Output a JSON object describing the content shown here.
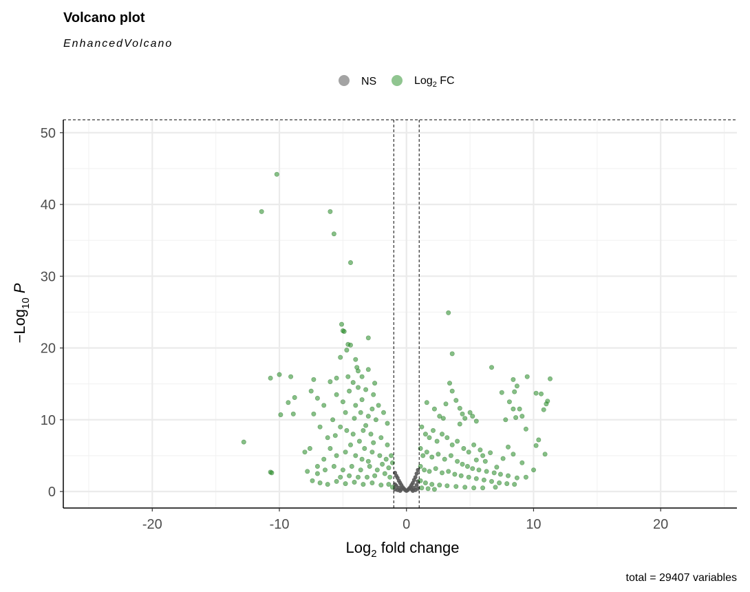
{
  "chart_data": {
    "type": "scatter",
    "title": "Volcano plot",
    "subtitle": "EnhancedVolcano",
    "xlabel": "Log2 fold change",
    "ylabel": "−Log10 P",
    "xlim": [
      -27,
      26
    ],
    "ylim": [
      -2.3,
      51.8
    ],
    "x_ticks": [
      -20,
      -10,
      0,
      10,
      20
    ],
    "y_ticks": [
      0,
      10,
      20,
      30,
      40,
      50
    ],
    "grid": true,
    "legend_position": "top",
    "legend": [
      {
        "label": "NS",
        "color": "#999999"
      },
      {
        "label": "Log2 FC",
        "color": "#228B22"
      }
    ],
    "cutoffs": {
      "fc": [
        -1,
        1
      ],
      "p_line_y": 51.8
    },
    "caption": "total = 29407 variables",
    "series": [
      {
        "name": "NS",
        "color": "#555555",
        "points": [
          [
            -0.9,
            2.6
          ],
          [
            -0.8,
            2.2
          ],
          [
            -0.7,
            1.9
          ],
          [
            -0.6,
            1.5
          ],
          [
            -0.5,
            1.2
          ],
          [
            -0.4,
            0.9
          ],
          [
            -0.3,
            0.6
          ],
          [
            -0.2,
            0.4
          ],
          [
            -0.1,
            0.2
          ],
          [
            0.0,
            0.1
          ],
          [
            0.1,
            0.2
          ],
          [
            0.2,
            0.4
          ],
          [
            0.3,
            0.6
          ],
          [
            0.4,
            0.9
          ],
          [
            0.5,
            1.2
          ],
          [
            0.6,
            1.6
          ],
          [
            0.7,
            2.0
          ],
          [
            0.8,
            2.5
          ],
          [
            0.9,
            3.0
          ],
          [
            -0.9,
            1.0
          ],
          [
            -0.8,
            0.8
          ],
          [
            -0.6,
            0.5
          ],
          [
            -0.4,
            0.3
          ],
          [
            0.4,
            0.3
          ],
          [
            0.6,
            0.5
          ],
          [
            0.8,
            0.9
          ],
          [
            0.9,
            1.4
          ],
          [
            -0.9,
            0.3
          ],
          [
            -0.7,
            0.2
          ],
          [
            -0.5,
            0.1
          ],
          [
            0.5,
            0.1
          ],
          [
            0.7,
            0.2
          ],
          [
            0.9,
            0.4
          ]
        ]
      },
      {
        "name": "Log2 FC",
        "color": "#228B22",
        "points": [
          [
            -10.2,
            44.2
          ],
          [
            -11.4,
            39.0
          ],
          [
            -6.0,
            39.0
          ],
          [
            -5.7,
            35.9
          ],
          [
            -4.4,
            31.9
          ],
          [
            3.3,
            24.9
          ],
          [
            3.6,
            19.2
          ],
          [
            -5.1,
            23.3
          ],
          [
            -5.0,
            22.4
          ],
          [
            -4.9,
            22.3
          ],
          [
            -3.0,
            21.4
          ],
          [
            -4.6,
            20.5
          ],
          [
            -4.4,
            20.4
          ],
          [
            -4.7,
            19.7
          ],
          [
            -5.2,
            18.7
          ],
          [
            -4.0,
            18.4
          ],
          [
            -3.9,
            17.3
          ],
          [
            -3.8,
            16.8
          ],
          [
            -3.0,
            17.0
          ],
          [
            -3.5,
            16.0
          ],
          [
            -4.6,
            16.0
          ],
          [
            -5.5,
            15.8
          ],
          [
            -2.5,
            15.1
          ],
          [
            -6.0,
            15.3
          ],
          [
            -4.2,
            15.2
          ],
          [
            -10.0,
            16.3
          ],
          [
            -10.7,
            15.8
          ],
          [
            -9.1,
            16.0
          ],
          [
            -7.3,
            15.6
          ],
          [
            -8.8,
            13.1
          ],
          [
            -9.3,
            12.4
          ],
          [
            -9.9,
            10.7
          ],
          [
            -8.9,
            10.8
          ],
          [
            -12.8,
            6.9
          ],
          [
            -10.7,
            2.7
          ],
          [
            -10.6,
            2.6
          ],
          [
            -7.5,
            14.0
          ],
          [
            -7.3,
            10.8
          ],
          [
            -7.0,
            13.0
          ],
          [
            -6.5,
            12.0
          ],
          [
            -5.8,
            10.0
          ],
          [
            -6.8,
            9.0
          ],
          [
            -7.6,
            6.0
          ],
          [
            -8.0,
            5.5
          ],
          [
            -6.2,
            7.5
          ],
          [
            -5.5,
            13.5
          ],
          [
            -5.0,
            12.5
          ],
          [
            -4.5,
            14.0
          ],
          [
            -3.8,
            14.5
          ],
          [
            -3.2,
            14.2
          ],
          [
            -2.6,
            13.5
          ],
          [
            -2.2,
            12.0
          ],
          [
            -1.8,
            11.0
          ],
          [
            -1.5,
            9.5
          ],
          [
            -4.0,
            12.0
          ],
          [
            -3.6,
            11.0
          ],
          [
            -3.0,
            10.5
          ],
          [
            -2.4,
            10.0
          ],
          [
            -5.2,
            9.0
          ],
          [
            -4.7,
            8.5
          ],
          [
            -4.2,
            8.0
          ],
          [
            -3.4,
            8.5
          ],
          [
            -2.8,
            8.0
          ],
          [
            -2.0,
            7.5
          ],
          [
            -1.5,
            6.5
          ],
          [
            -1.2,
            5.0
          ],
          [
            -1.1,
            4.0
          ],
          [
            -6.0,
            6.0
          ],
          [
            -5.5,
            5.0
          ],
          [
            -4.8,
            5.5
          ],
          [
            -4.0,
            5.0
          ],
          [
            -3.3,
            6.0
          ],
          [
            -2.7,
            5.5
          ],
          [
            -2.1,
            5.0
          ],
          [
            -1.6,
            4.5
          ],
          [
            -7.0,
            3.5
          ],
          [
            -6.4,
            3.0
          ],
          [
            -5.7,
            3.5
          ],
          [
            -5.0,
            3.0
          ],
          [
            -4.3,
            3.5
          ],
          [
            -3.6,
            3.0
          ],
          [
            -2.9,
            3.5
          ],
          [
            -2.3,
            3.0
          ],
          [
            -1.7,
            2.5
          ],
          [
            -1.3,
            2.0
          ],
          [
            -7.4,
            1.5
          ],
          [
            -6.8,
            1.2
          ],
          [
            -6.2,
            1.0
          ],
          [
            -5.5,
            1.4
          ],
          [
            -4.8,
            1.1
          ],
          [
            -4.1,
            1.3
          ],
          [
            -3.4,
            1.0
          ],
          [
            -2.7,
            1.2
          ],
          [
            -2.0,
            0.9
          ],
          [
            -1.4,
            1.0
          ],
          [
            -1.1,
            0.6
          ],
          [
            -3.1,
            2.0
          ],
          [
            -3.8,
            2.0
          ],
          [
            -4.5,
            2.2
          ],
          [
            -5.2,
            2.0
          ],
          [
            -2.5,
            2.2
          ],
          [
            -3.0,
            4.2
          ],
          [
            -3.5,
            4.5
          ],
          [
            -2.6,
            6.8
          ],
          [
            -3.7,
            7.0
          ],
          [
            -4.4,
            6.5
          ],
          [
            -1.9,
            3.8
          ],
          [
            -1.4,
            3.3
          ],
          [
            -3.2,
            9.2
          ],
          [
            -2.7,
            11.5
          ],
          [
            -4.1,
            10.2
          ],
          [
            -3.5,
            12.8
          ],
          [
            -4.8,
            11.0
          ],
          [
            -5.6,
            7.8
          ],
          [
            -6.5,
            4.5
          ],
          [
            -7.0,
            2.5
          ],
          [
            -7.8,
            2.8
          ],
          [
            1.6,
            12.4
          ],
          [
            2.2,
            11.5
          ],
          [
            2.6,
            10.5
          ],
          [
            3.1,
            12.2
          ],
          [
            3.4,
            15.1
          ],
          [
            3.6,
            14.0
          ],
          [
            3.9,
            12.7
          ],
          [
            4.2,
            11.6
          ],
          [
            4.4,
            10.8
          ],
          [
            4.6,
            10.2
          ],
          [
            5.0,
            11.0
          ],
          [
            5.2,
            10.5
          ],
          [
            5.5,
            9.8
          ],
          [
            6.7,
            17.3
          ],
          [
            7.5,
            13.8
          ],
          [
            8.4,
            15.6
          ],
          [
            9.5,
            16.0
          ],
          [
            8.7,
            14.7
          ],
          [
            8.5,
            13.9
          ],
          [
            8.1,
            12.5
          ],
          [
            8.4,
            11.5
          ],
          [
            8.9,
            11.5
          ],
          [
            9.1,
            10.5
          ],
          [
            10.2,
            13.7
          ],
          [
            10.6,
            13.6
          ],
          [
            11.3,
            15.7
          ],
          [
            11.1,
            12.6
          ],
          [
            10.8,
            11.4
          ],
          [
            11.0,
            12.2
          ],
          [
            7.8,
            10.0
          ],
          [
            8.6,
            10.3
          ],
          [
            9.4,
            8.7
          ],
          [
            10.4,
            7.2
          ],
          [
            10.2,
            6.4
          ],
          [
            10.9,
            5.2
          ],
          [
            10.0,
            3.0
          ],
          [
            9.4,
            2.0
          ],
          [
            8.7,
            1.9
          ],
          [
            9.1,
            4.0
          ],
          [
            8.4,
            5.2
          ],
          [
            8.0,
            6.2
          ],
          [
            7.6,
            4.6
          ],
          [
            7.1,
            3.4
          ],
          [
            6.6,
            5.4
          ],
          [
            6.0,
            5.0
          ],
          [
            5.5,
            4.4
          ],
          [
            1.2,
            9.0
          ],
          [
            1.5,
            8.0
          ],
          [
            1.8,
            7.5
          ],
          [
            2.1,
            8.5
          ],
          [
            2.4,
            7.0
          ],
          [
            2.8,
            8.0
          ],
          [
            3.2,
            7.5
          ],
          [
            3.6,
            6.5
          ],
          [
            4.0,
            7.0
          ],
          [
            4.5,
            6.0
          ],
          [
            4.9,
            5.5
          ],
          [
            5.3,
            6.5
          ],
          [
            5.8,
            5.8
          ],
          [
            6.2,
            4.2
          ],
          [
            1.1,
            6.0
          ],
          [
            1.3,
            5.0
          ],
          [
            1.6,
            5.5
          ],
          [
            2.0,
            4.8
          ],
          [
            2.5,
            5.2
          ],
          [
            3.0,
            4.5
          ],
          [
            3.5,
            5.0
          ],
          [
            4.0,
            4.2
          ],
          [
            4.4,
            3.8
          ],
          [
            4.8,
            3.5
          ],
          [
            5.2,
            3.2
          ],
          [
            5.7,
            3.0
          ],
          [
            6.3,
            2.8
          ],
          [
            6.9,
            2.6
          ],
          [
            7.4,
            2.4
          ],
          [
            8.0,
            2.2
          ],
          [
            1.1,
            3.5
          ],
          [
            1.4,
            3.0
          ],
          [
            1.8,
            2.8
          ],
          [
            2.3,
            3.2
          ],
          [
            2.8,
            2.6
          ],
          [
            3.3,
            2.8
          ],
          [
            3.8,
            2.4
          ],
          [
            4.3,
            2.2
          ],
          [
            4.9,
            2.0
          ],
          [
            5.5,
            1.8
          ],
          [
            6.1,
            1.6
          ],
          [
            6.7,
            1.4
          ],
          [
            7.3,
            1.2
          ],
          [
            7.9,
            1.1
          ],
          [
            8.5,
            1.0
          ],
          [
            1.1,
            1.5
          ],
          [
            1.5,
            1.2
          ],
          [
            2.0,
            1.0
          ],
          [
            2.6,
            0.9
          ],
          [
            3.2,
            0.8
          ],
          [
            3.9,
            0.7
          ],
          [
            4.6,
            0.6
          ],
          [
            5.3,
            0.5
          ],
          [
            6.0,
            0.5
          ],
          [
            1.2,
            0.5
          ],
          [
            1.7,
            0.4
          ],
          [
            2.2,
            0.3
          ],
          [
            7.0,
            0.6
          ],
          [
            4.2,
            9.4
          ],
          [
            2.9,
            10.2
          ]
        ]
      }
    ]
  }
}
